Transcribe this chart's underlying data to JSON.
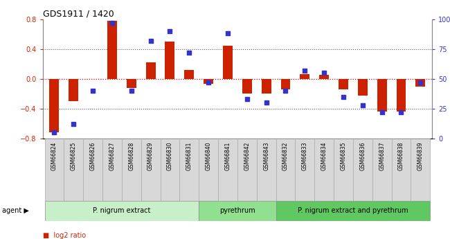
{
  "title": "GDS1911 / 1420",
  "samples": [
    "GSM66824",
    "GSM66825",
    "GSM66826",
    "GSM66827",
    "GSM66828",
    "GSM66829",
    "GSM66830",
    "GSM66831",
    "GSM66840",
    "GSM66841",
    "GSM66842",
    "GSM66843",
    "GSM66832",
    "GSM66833",
    "GSM66834",
    "GSM66835",
    "GSM66836",
    "GSM66837",
    "GSM66838",
    "GSM66839"
  ],
  "log2ratio": [
    -0.72,
    -0.3,
    0.0,
    0.78,
    -0.12,
    0.22,
    0.5,
    0.12,
    -0.07,
    0.44,
    -0.2,
    -0.2,
    -0.14,
    0.06,
    0.05,
    -0.14,
    -0.22,
    -0.44,
    -0.44,
    -0.1
  ],
  "percentile": [
    5,
    12,
    40,
    97,
    40,
    82,
    90,
    72,
    47,
    88,
    33,
    30,
    40,
    57,
    55,
    35,
    28,
    22,
    22,
    47
  ],
  "groups": [
    {
      "label": "P. nigrum extract",
      "start": 0,
      "end": 7,
      "color": "#c8f0c8"
    },
    {
      "label": "pyrethrum",
      "start": 8,
      "end": 11,
      "color": "#90e090"
    },
    {
      "label": "P. nigrum extract and pyrethrum",
      "start": 12,
      "end": 19,
      "color": "#60c860"
    }
  ],
  "bar_color": "#cc2200",
  "dot_color": "#3333cc",
  "ylim_left": [
    -0.8,
    0.8
  ],
  "ylim_right": [
    0,
    100
  ],
  "yticks_left": [
    -0.8,
    -0.4,
    0.0,
    0.4,
    0.8
  ],
  "yticks_right": [
    0,
    25,
    50,
    75,
    100
  ],
  "ytick_labels_right": [
    "0",
    "25",
    "50",
    "75",
    "100%"
  ],
  "hline_color": "#cc0000",
  "dotted_color": "#555555",
  "cell_bg": "#d8d8d8",
  "cell_border": "#aaaaaa"
}
